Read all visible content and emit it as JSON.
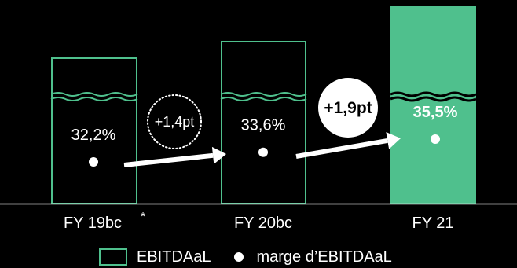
{
  "chart_data": {
    "type": "bar",
    "categories": [
      "FY 19bc",
      "FY 20bc",
      "FY 21"
    ],
    "category_notes": [
      "*",
      "",
      ""
    ],
    "bars_axis_broken": true,
    "series": [
      {
        "name": "EBITDAaL",
        "role": "bars",
        "style": [
          "outline",
          "outline",
          "filled"
        ]
      },
      {
        "name": "marge d'EBITDAaL",
        "role": "markers",
        "values": [
          32.2,
          33.6,
          35.5
        ],
        "labels": [
          "32,2%",
          "33,6%",
          "35,5%"
        ]
      }
    ],
    "changes": [
      {
        "from": "FY 19bc",
        "to": "FY 20bc",
        "label": "+1,4pt",
        "style": "dotted-circle"
      },
      {
        "from": "FY 20bc",
        "to": "FY 21",
        "label": "+1,9pt",
        "style": "filled-circle"
      }
    ],
    "legend": {
      "position": "bottom",
      "items": [
        {
          "label": "EBITDAaL",
          "marker": "outlined-square"
        },
        {
          "label": "marge d’EBITDAaL",
          "marker": "dot"
        }
      ]
    },
    "grid": false
  },
  "colors": {
    "background": "#000000",
    "accent": "#4fc08d",
    "text": "#ffffff"
  }
}
